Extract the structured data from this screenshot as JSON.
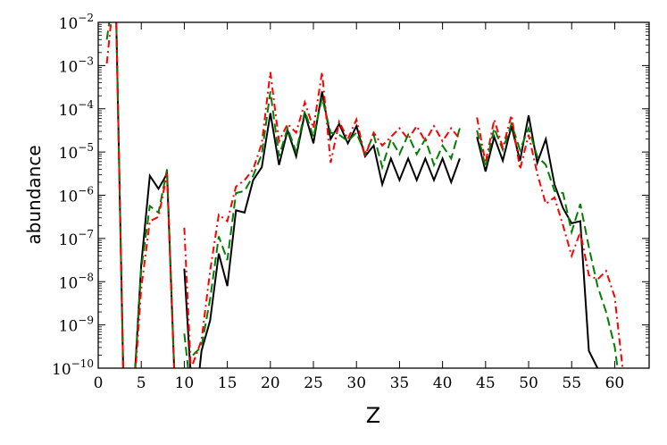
{
  "chart_data": {
    "type": "line",
    "title": "",
    "xlabel": "Z",
    "ylabel": "abundance",
    "xlim": [
      0,
      64
    ],
    "ylim": [
      1e-10,
      0.01
    ],
    "yscale": "log",
    "grid": false,
    "x_ticks": [
      0,
      5,
      10,
      15,
      20,
      25,
      30,
      35,
      40,
      45,
      50,
      55,
      60
    ],
    "x_tick_labels": [
      "0",
      "5",
      "10",
      "15",
      "20",
      "25",
      "30",
      "35",
      "40",
      "45",
      "50",
      "55",
      "60"
    ],
    "y_ticks": [
      {
        "exp": -10,
        "label": "10",
        "sup": "−10"
      },
      {
        "exp": -9,
        "label": "10",
        "sup": "−9"
      },
      {
        "exp": -8,
        "label": "10",
        "sup": "−8"
      },
      {
        "exp": -7,
        "label": "10",
        "sup": "−7"
      },
      {
        "exp": -6,
        "label": "10",
        "sup": "−6"
      },
      {
        "exp": -5,
        "label": "10",
        "sup": "−5"
      },
      {
        "exp": -4,
        "label": "10",
        "sup": "−4"
      },
      {
        "exp": -3,
        "label": "10",
        "sup": "−3"
      },
      {
        "exp": -2,
        "label": "10",
        "sup": "−2"
      }
    ],
    "series": [
      {
        "color": "#000000",
        "dash": "",
        "segments": [
          [
            [
              1,
              -2.0
            ],
            [
              2,
              -1.0
            ],
            [
              3,
              -11.0
            ]
          ],
          [
            [
              4,
              -11.0
            ],
            [
              5,
              -7.6
            ],
            [
              6,
              -5.55
            ],
            [
              7,
              -5.85
            ],
            [
              8,
              -5.5
            ],
            [
              9,
              -11.0
            ]
          ],
          [
            [
              10,
              -7.7
            ],
            [
              11,
              -11.0
            ]
          ],
          [
            [
              11.5,
              -10.5
            ],
            [
              12,
              -9.6
            ],
            [
              13,
              -8.9
            ],
            [
              14,
              -7.35
            ],
            [
              15,
              -8.1
            ],
            [
              16,
              -6.35
            ],
            [
              17,
              -6.4
            ],
            [
              18,
              -5.65
            ],
            [
              19,
              -5.35
            ],
            [
              20,
              -4.1
            ],
            [
              21,
              -5.3
            ],
            [
              22,
              -4.5
            ],
            [
              23,
              -5.1
            ],
            [
              24,
              -4.1
            ],
            [
              25,
              -4.8
            ],
            [
              26,
              -3.6
            ],
            [
              27,
              -4.7
            ],
            [
              28,
              -4.35
            ],
            [
              29,
              -4.8
            ],
            [
              30,
              -4.4
            ],
            [
              31,
              -5.1
            ],
            [
              32,
              -4.85
            ],
            [
              33,
              -5.75
            ],
            [
              34,
              -5.15
            ],
            [
              35,
              -5.65
            ],
            [
              36,
              -5.15
            ],
            [
              37,
              -5.65
            ],
            [
              38,
              -5.15
            ],
            [
              39,
              -5.65
            ],
            [
              40,
              -5.15
            ],
            [
              41,
              -5.7
            ],
            [
              42,
              -5.15
            ]
          ],
          [
            [
              44,
              -4.65
            ],
            [
              45,
              -5.45
            ],
            [
              46,
              -4.65
            ],
            [
              47,
              -5.2
            ],
            [
              48,
              -4.4
            ],
            [
              49,
              -5.2
            ],
            [
              50,
              -4.15
            ],
            [
              51,
              -5.25
            ],
            [
              52,
              -4.7
            ],
            [
              53,
              -5.75
            ],
            [
              54,
              -6.3
            ],
            [
              55,
              -6.65
            ],
            [
              56,
              -6.6
            ],
            [
              57,
              -9.6
            ],
            [
              58,
              -10.0
            ],
            [
              59,
              -10.35
            ],
            [
              60,
              -11.0
            ]
          ]
        ]
      },
      {
        "color": "#007f00",
        "dash": "10,5",
        "segments": [
          [
            [
              1,
              -2.4
            ],
            [
              2,
              -1.0
            ],
            [
              3,
              -11.0
            ]
          ],
          [
            [
              4,
              -11.0
            ],
            [
              5,
              -7.7
            ],
            [
              6,
              -6.25
            ],
            [
              7,
              -6.4
            ],
            [
              8,
              -5.4
            ],
            [
              9,
              -11.0
            ]
          ],
          [
            [
              10,
              -9.2
            ],
            [
              11,
              -11.0
            ]
          ],
          [
            [
              11,
              -9.7
            ],
            [
              12,
              -9.5
            ],
            [
              13,
              -8.4
            ],
            [
              14,
              -6.95
            ],
            [
              15,
              -7.5
            ],
            [
              16,
              -5.95
            ],
            [
              17,
              -5.9
            ],
            [
              18,
              -5.55
            ],
            [
              19,
              -5.05
            ],
            [
              20,
              -3.6
            ],
            [
              21,
              -5.1
            ],
            [
              22,
              -4.45
            ],
            [
              23,
              -5.0
            ],
            [
              24,
              -4.05
            ],
            [
              25,
              -4.65
            ],
            [
              26,
              -3.75
            ],
            [
              27,
              -4.55
            ],
            [
              28,
              -4.6
            ],
            [
              29,
              -4.75
            ],
            [
              30,
              -4.55
            ],
            [
              31,
              -5.05
            ],
            [
              32,
              -4.6
            ],
            [
              33,
              -5.35
            ],
            [
              34,
              -4.7
            ],
            [
              35,
              -5.05
            ],
            [
              36,
              -4.6
            ],
            [
              37,
              -5.05
            ],
            [
              38,
              -4.7
            ],
            [
              39,
              -5.3
            ],
            [
              40,
              -4.85
            ],
            [
              41,
              -5.15
            ],
            [
              42,
              -4.45
            ]
          ],
          [
            [
              44,
              -4.5
            ],
            [
              45,
              -5.35
            ],
            [
              46,
              -4.45
            ],
            [
              47,
              -4.95
            ],
            [
              48,
              -4.35
            ],
            [
              49,
              -4.95
            ],
            [
              50,
              -4.45
            ],
            [
              51,
              -5.1
            ],
            [
              52,
              -5.3
            ],
            [
              53,
              -5.9
            ],
            [
              54,
              -5.95
            ],
            [
              55,
              -6.85
            ],
            [
              56,
              -6.2
            ],
            [
              57,
              -7.2
            ],
            [
              58,
              -8.1
            ],
            [
              59,
              -8.7
            ],
            [
              60,
              -9.5
            ],
            [
              61,
              -11.0
            ]
          ]
        ]
      },
      {
        "color": "#ff0000",
        "dash": "8,4,2,4",
        "segments": [
          [
            [
              1,
              -2.95
            ],
            [
              2,
              -1.0
            ],
            [
              3,
              -11.0
            ]
          ],
          [
            [
              4,
              -11.0
            ],
            [
              5,
              -8.15
            ],
            [
              6,
              -6.6
            ],
            [
              7,
              -6.5
            ],
            [
              8,
              -5.5
            ],
            [
              9,
              -11.0
            ]
          ],
          [
            [
              10,
              -6.75
            ],
            [
              11,
              -11.0
            ]
          ],
          [
            [
              11,
              -9.9
            ],
            [
              12,
              -9.35
            ],
            [
              13,
              -7.75
            ],
            [
              14,
              -6.45
            ],
            [
              15,
              -6.6
            ],
            [
              16,
              -5.8
            ],
            [
              17,
              -5.65
            ],
            [
              18,
              -5.4
            ],
            [
              19,
              -4.8
            ],
            [
              20,
              -3.15
            ],
            [
              21,
              -4.75
            ],
            [
              22,
              -4.35
            ],
            [
              23,
              -4.55
            ],
            [
              24,
              -3.85
            ],
            [
              25,
              -4.45
            ],
            [
              26,
              -3.15
            ],
            [
              27,
              -5.25
            ],
            [
              28,
              -4.3
            ],
            [
              29,
              -4.7
            ],
            [
              30,
              -4.25
            ],
            [
              31,
              -5.1
            ],
            [
              32,
              -4.55
            ],
            [
              33,
              -4.85
            ],
            [
              34,
              -4.65
            ],
            [
              35,
              -4.45
            ],
            [
              36,
              -4.7
            ],
            [
              37,
              -4.4
            ],
            [
              38,
              -4.75
            ],
            [
              39,
              -4.4
            ],
            [
              40,
              -4.75
            ],
            [
              41,
              -4.45
            ],
            [
              42,
              -4.7
            ]
          ],
          [
            [
              44,
              -4.2
            ],
            [
              45,
              -5.25
            ],
            [
              46,
              -4.25
            ],
            [
              47,
              -4.9
            ],
            [
              48,
              -4.15
            ],
            [
              49,
              -5.4
            ],
            [
              50,
              -4.6
            ],
            [
              51,
              -5.5
            ],
            [
              52,
              -6.2
            ],
            [
              53,
              -6.05
            ],
            [
              54,
              -6.7
            ],
            [
              55,
              -7.4
            ],
            [
              56,
              -6.85
            ],
            [
              57,
              -7.85
            ],
            [
              58,
              -7.95
            ],
            [
              59,
              -7.75
            ],
            [
              60,
              -8.35
            ],
            [
              61,
              -10.15
            ],
            [
              62,
              -11.0
            ]
          ],
          [
            [
              62.5,
              -10.3
            ],
            [
              63,
              -11.0
            ]
          ]
        ]
      }
    ]
  }
}
